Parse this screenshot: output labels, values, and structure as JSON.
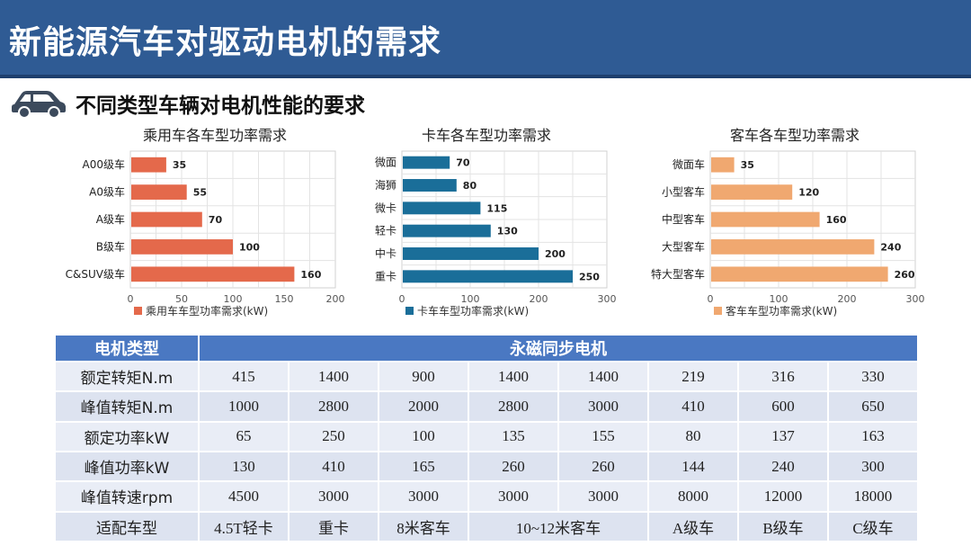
{
  "header": {
    "title": "新能源汽车对驱动电机的需求"
  },
  "section": {
    "icon": "car-icon",
    "subtitle": "不同类型车辆对电机性能的要求"
  },
  "colors": {
    "passenger": "#e4694b",
    "truck": "#1a6e99",
    "bus": "#f0a870",
    "header_blue": "#2f5b94",
    "table_head": "#4a78c2"
  },
  "chart_data": [
    {
      "type": "bar",
      "orientation": "horizontal",
      "title": "乘用车各车型功率需求",
      "categories": [
        "A00级车",
        "A0级车",
        "A级车",
        "B级车",
        "C&SUV级车"
      ],
      "values": [
        35,
        55,
        70,
        100,
        160
      ],
      "value_labels": [
        "35",
        "55",
        "70",
        "100",
        "160"
      ],
      "xlim": [
        0,
        200
      ],
      "ticks": [
        "0",
        "50",
        "100",
        "150",
        "200"
      ],
      "legend": "乘用车车型功率需求(kW)",
      "legend_position": "bottom",
      "grid": true
    },
    {
      "type": "bar",
      "orientation": "horizontal",
      "title": "卡车各车型功率需求",
      "categories": [
        "微面",
        "海狮",
        "微卡",
        "轻卡",
        "中卡",
        "重卡"
      ],
      "values": [
        70,
        80,
        115,
        130,
        200,
        250
      ],
      "value_labels": [
        "70",
        "80",
        "115",
        "130",
        "200",
        "250"
      ],
      "xlim": [
        0,
        300
      ],
      "ticks": [
        "0",
        "100",
        "200",
        "300"
      ],
      "legend": "卡车车型功率需求(kW)",
      "legend_position": "bottom",
      "grid": true
    },
    {
      "type": "bar",
      "orientation": "horizontal",
      "title": "客车各车型功率需求",
      "categories": [
        "微面车",
        "小型客车",
        "中型客车",
        "大型客车",
        "特大型客车"
      ],
      "values": [
        35,
        120,
        160,
        240,
        260
      ],
      "value_labels": [
        "35",
        "120",
        "160",
        "240",
        "260"
      ],
      "xlim": [
        0,
        300
      ],
      "ticks": [
        "0",
        "100",
        "200",
        "300"
      ],
      "legend": "客车车型功率需求(kW)",
      "legend_position": "bottom",
      "grid": true
    }
  ],
  "table": {
    "head_label": "电机类型",
    "head_value": "永磁同步电机",
    "rows": [
      {
        "label": "额定转矩N.m",
        "cells": [
          "415",
          "1400",
          "900",
          "1400",
          "1400",
          "219",
          "316",
          "330"
        ]
      },
      {
        "label": "峰值转矩N.m",
        "cells": [
          "1000",
          "2800",
          "2000",
          "2800",
          "3000",
          "410",
          "600",
          "650"
        ]
      },
      {
        "label": "额定功率kW",
        "cells": [
          "65",
          "250",
          "100",
          "135",
          "155",
          "80",
          "137",
          "163"
        ]
      },
      {
        "label": "峰值功率kW",
        "cells": [
          "130",
          "410",
          "165",
          "260",
          "260",
          "144",
          "240",
          "300"
        ]
      },
      {
        "label": "峰值转速rpm",
        "cells": [
          "4500",
          "3000",
          "3000",
          "3000",
          "3000",
          "8000",
          "12000",
          "18000"
        ]
      }
    ],
    "fit_row": {
      "label": "适配车型",
      "cells": [
        "4.5T轻卡",
        "重卡",
        "8米客车",
        "10~12米客车",
        "A级车",
        "B级车",
        "C级车"
      ]
    }
  }
}
